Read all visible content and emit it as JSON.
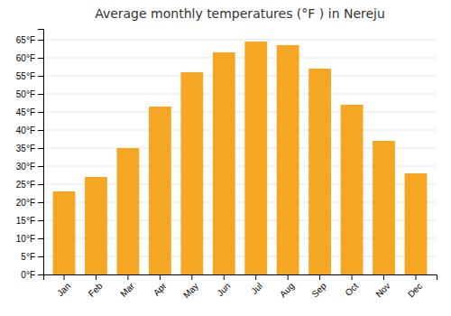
{
  "chart_data": {
    "type": "bar",
    "title": "Average monthly temperatures (°F ) in Nereju",
    "categories": [
      "Jan",
      "Feb",
      "Mar",
      "Apr",
      "May",
      "Jun",
      "Jul",
      "Aug",
      "Sep",
      "Oct",
      "Nov",
      "Dec"
    ],
    "values": [
      23,
      27,
      35,
      46.5,
      56,
      61.5,
      64.5,
      63.5,
      57,
      47,
      37,
      28
    ],
    "color": "#F5A623",
    "ylim": [
      0,
      68
    ],
    "yticks": [
      {
        "value": 0,
        "label": "0°F"
      },
      {
        "value": 5,
        "label": "5°F"
      },
      {
        "value": 10,
        "label": "10°F"
      },
      {
        "value": 15,
        "label": "15°F"
      },
      {
        "value": 20,
        "label": "20°F"
      },
      {
        "value": 25,
        "label": "25°F"
      },
      {
        "value": 30,
        "label": "30°F"
      },
      {
        "value": 35,
        "label": "35°F"
      },
      {
        "value": 40,
        "label": "40°F"
      },
      {
        "value": 45,
        "label": "45°F"
      },
      {
        "value": 50,
        "label": "50°F"
      },
      {
        "value": 55,
        "label": "55°F"
      },
      {
        "value": 60,
        "label": "60°F"
      },
      {
        "value": 65,
        "label": "65°F"
      }
    ],
    "grid": true
  }
}
